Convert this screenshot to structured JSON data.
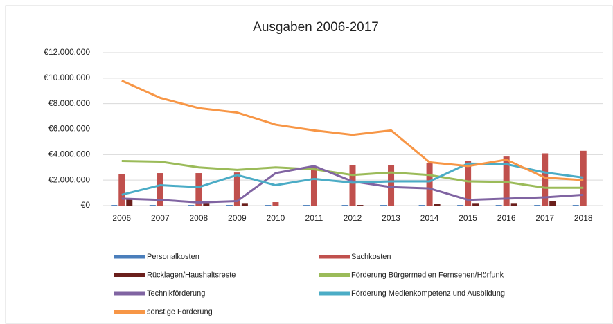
{
  "chart_data": {
    "type": "combo",
    "title": "Ausgaben 2006-2017",
    "categories": [
      "2006",
      "2007",
      "2008",
      "2009",
      "2010",
      "2011",
      "2012",
      "2013",
      "2014",
      "2015",
      "2016",
      "2017",
      "2018"
    ],
    "ylim": [
      0,
      12000000
    ],
    "yticks": [
      {
        "value": 0,
        "label": "€0"
      },
      {
        "value": 2000000,
        "label": "€2.000.000"
      },
      {
        "value": 4000000,
        "label": "€4.000.000"
      },
      {
        "value": 6000000,
        "label": "€6.000.000"
      },
      {
        "value": 8000000,
        "label": "€8.000.000"
      },
      {
        "value": 10000000,
        "label": "€10.000.000"
      },
      {
        "value": 12000000,
        "label": "€12.000.000"
      }
    ],
    "grid": true,
    "series": [
      {
        "name": "Personalkosten",
        "type": "bar",
        "color": "#4a7ebb",
        "values": [
          50000,
          50000,
          50000,
          50000,
          50000,
          50000,
          50000,
          50000,
          50000,
          50000,
          50000,
          50000,
          50000
        ]
      },
      {
        "name": "Sachkosten",
        "type": "bar",
        "color": "#c0504d",
        "values": [
          2450000,
          2550000,
          2550000,
          2600000,
          270000,
          3100000,
          3200000,
          3200000,
          3350000,
          3500000,
          3850000,
          4100000,
          4300000
        ]
      },
      {
        "name": "Rücklagen/Haushaltsreste",
        "type": "bar",
        "color": "#6b1f1c",
        "values": [
          500000,
          0,
          200000,
          200000,
          0,
          0,
          50000,
          0,
          150000,
          200000,
          200000,
          350000,
          0
        ]
      },
      {
        "name": "Förderung Bürgermedien Fernsehen/Hörfunk",
        "type": "line",
        "color": "#9bbb59",
        "values": [
          3500000,
          3450000,
          3000000,
          2800000,
          3000000,
          2850000,
          2400000,
          2600000,
          2400000,
          1900000,
          1850000,
          1400000,
          1400000
        ]
      },
      {
        "name": "Technikförderung",
        "type": "line",
        "color": "#8064a2",
        "values": [
          550000,
          450000,
          250000,
          350000,
          2550000,
          3100000,
          1900000,
          1450000,
          1350000,
          450000,
          550000,
          650000,
          850000
        ]
      },
      {
        "name": "Förderung Medienkompetenz und Ausbildung",
        "type": "line",
        "color": "#4bacc6",
        "values": [
          850000,
          1600000,
          1450000,
          2400000,
          1600000,
          2100000,
          1800000,
          1900000,
          1900000,
          3300000,
          3250000,
          2600000,
          2200000
        ]
      },
      {
        "name": "sonstige Förderung",
        "type": "line",
        "color": "#f79646",
        "values": [
          9800000,
          8450000,
          7650000,
          7300000,
          6350000,
          5900000,
          5550000,
          5900000,
          3400000,
          3100000,
          3600000,
          2200000,
          2000000
        ]
      }
    ]
  }
}
